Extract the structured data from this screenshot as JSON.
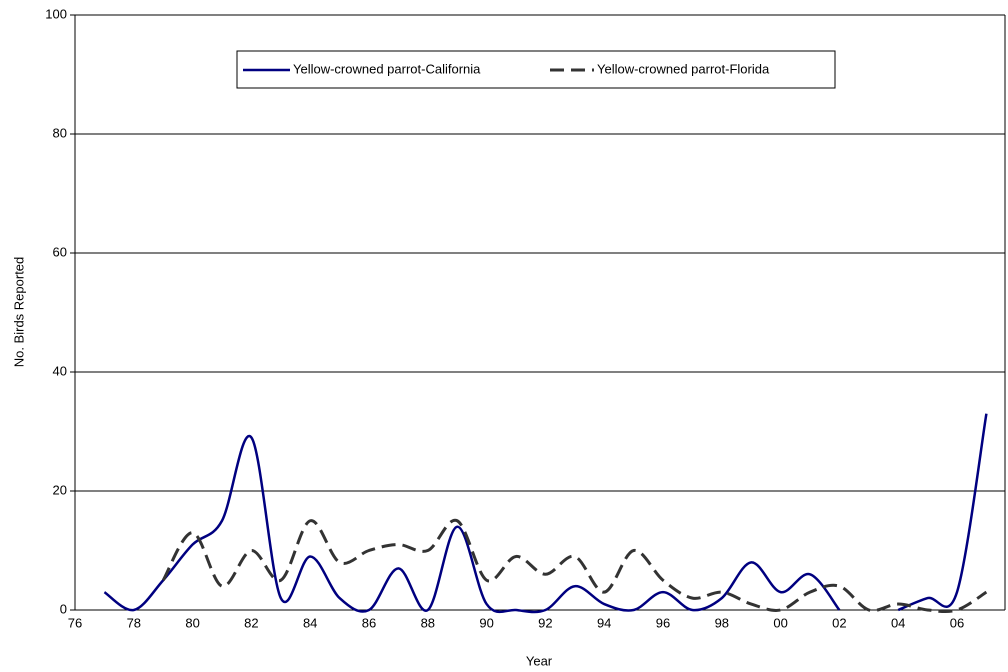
{
  "chart_data": {
    "type": "line",
    "x_label": "Year",
    "y_label": "No. Birds Reported",
    "categories": [
      "76",
      null,
      "78",
      null,
      "80",
      null,
      "82",
      null,
      "84",
      null,
      "86",
      null,
      "88",
      null,
      "90",
      null,
      "92",
      null,
      "94",
      null,
      "96",
      null,
      "98",
      null,
      "00",
      null,
      "02",
      null,
      "04",
      null,
      "06",
      null
    ],
    "series": [
      {
        "name": "Yellow-crowned parrot-California",
        "color": "#000080",
        "dashed": false,
        "values": [
          null,
          3,
          0,
          5,
          11,
          15,
          29,
          2,
          9,
          2,
          0,
          7,
          0,
          14,
          1,
          0,
          0,
          4,
          1,
          0,
          3,
          0,
          2,
          8,
          3,
          6,
          0,
          null,
          0,
          2,
          3,
          33
        ]
      },
      {
        "name": "Yellow-crowned parrot-Florida",
        "color": "#333333",
        "dashed": true,
        "values": [
          null,
          null,
          null,
          5,
          13,
          4,
          10,
          5,
          15,
          8,
          10,
          11,
          10,
          15,
          5,
          9,
          6,
          9,
          3,
          10,
          5,
          2,
          3,
          1,
          0,
          3,
          4,
          0,
          1,
          0,
          0,
          3
        ]
      }
    ],
    "ylim": [
      0,
      100
    ],
    "yticks": [
      0,
      20,
      40,
      60,
      80,
      100
    ],
    "grid": true,
    "legend": "top"
  }
}
